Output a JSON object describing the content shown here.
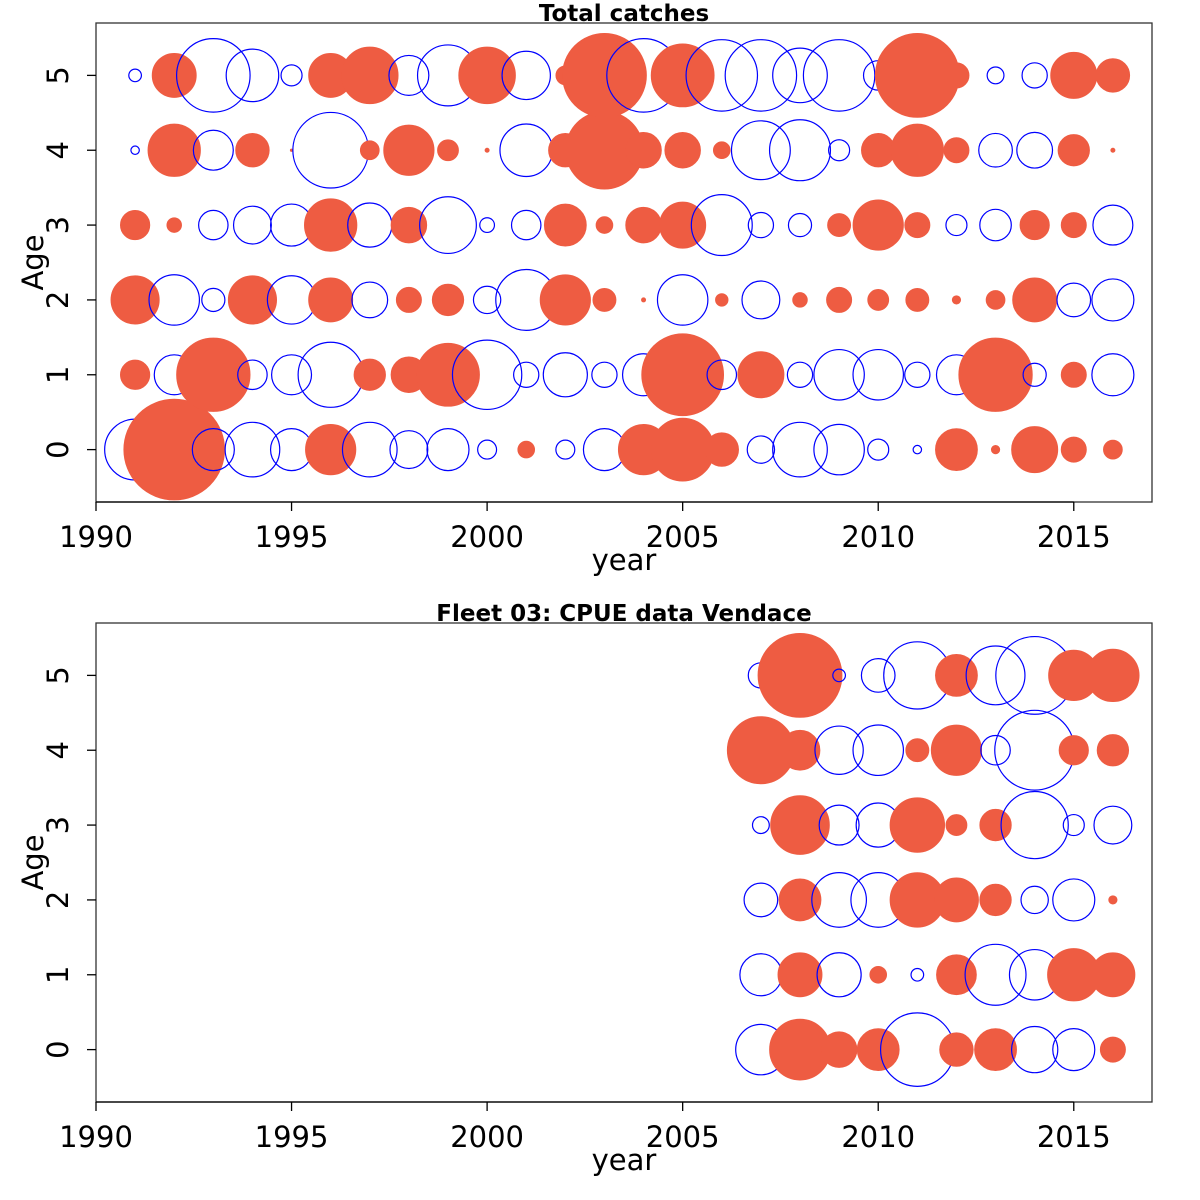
{
  "colors": {
    "positive": "#EE5C42",
    "negative": "#0000FF",
    "axis": "#000000",
    "frame": "#333333"
  },
  "chart_data": [
    {
      "type": "scatter",
      "subtype": "bubble",
      "title": "Total catches",
      "xlabel": "year",
      "ylabel": "Age",
      "xlim": [
        1990,
        2017
      ],
      "ylim": [
        -0.7,
        5.7
      ],
      "xticks": [
        1990,
        1995,
        2000,
        2005,
        2010,
        2015
      ],
      "yticks": [
        0,
        1,
        2,
        3,
        4,
        5
      ],
      "grid": false,
      "legend": "none",
      "encoding": "size = magnitude; filled red = positive, open blue = negative",
      "years": [
        1991,
        1992,
        1993,
        1994,
        1995,
        1996,
        1997,
        1998,
        1999,
        2000,
        2001,
        2002,
        2003,
        2004,
        2005,
        2006,
        2007,
        2008,
        2009,
        2010,
        2011,
        2012,
        2013,
        2014,
        2015,
        2016
      ],
      "ages": [
        0,
        1,
        2,
        3,
        4,
        5
      ],
      "values": [
        [
          -1.45,
          2.4,
          -1.0,
          -1.3,
          -1.0,
          1.2,
          -1.3,
          -0.9,
          -1.0,
          -0.45,
          0.4,
          -0.45,
          -1.0,
          1.2,
          1.5,
          0.8,
          -0.65,
          -1.3,
          -1.2,
          -0.5,
          -0.2,
          1.0,
          0.2,
          1.1,
          0.6,
          0.45
        ],
        [
          0.7,
          -0.95,
          1.75,
          -0.7,
          -0.95,
          -1.55,
          0.75,
          0.85,
          1.5,
          -1.65,
          -0.6,
          -1.05,
          -0.6,
          -1.0,
          1.95,
          -0.7,
          1.1,
          -0.6,
          -1.2,
          -1.2,
          -0.6,
          -0.95,
          1.75,
          -0.55,
          0.6,
          -1.0
        ],
        [
          1.15,
          -1.2,
          -0.55,
          1.15,
          -1.15,
          1.05,
          -0.85,
          0.6,
          0.75,
          -0.65,
          -1.45,
          1.2,
          0.55,
          0.1,
          -1.2,
          0.3,
          -0.9,
          0.35,
          0.6,
          0.5,
          0.55,
          0.2,
          0.45,
          1.05,
          -0.8,
          -1.0
        ],
        [
          0.7,
          0.35,
          -0.7,
          -0.9,
          -1.0,
          1.25,
          -1.05,
          0.85,
          -1.35,
          -0.35,
          -0.7,
          1.0,
          0.4,
          0.85,
          1.1,
          -1.45,
          -0.6,
          -0.55,
          0.55,
          1.2,
          0.6,
          -0.5,
          -0.75,
          0.7,
          0.6,
          -0.95
        ],
        [
          -0.2,
          1.25,
          -0.95,
          0.8,
          0.06,
          -1.8,
          0.45,
          1.2,
          0.5,
          0.1,
          -1.25,
          0.8,
          1.85,
          0.85,
          0.85,
          0.4,
          -1.4,
          -1.45,
          -0.5,
          0.8,
          1.25,
          0.6,
          -0.8,
          -0.85,
          0.75,
          0.1
        ],
        [
          -0.3,
          1.05,
          -1.75,
          -1.25,
          -0.5,
          1.05,
          1.35,
          -0.95,
          -1.45,
          1.35,
          -1.15,
          0.45,
          2.0,
          -1.75,
          1.5,
          -1.7,
          -1.7,
          -1.3,
          -1.7,
          -0.7,
          2.0,
          0.6,
          -0.4,
          -0.6,
          1.1,
          0.8
        ]
      ]
    },
    {
      "type": "scatter",
      "subtype": "bubble",
      "title": "Fleet 03:  CPUE data Vendace",
      "xlabel": "year",
      "ylabel": "Age",
      "xlim": [
        1990,
        2017
      ],
      "ylim": [
        -0.7,
        5.7
      ],
      "xticks": [
        1990,
        1995,
        2000,
        2005,
        2010,
        2015
      ],
      "yticks": [
        0,
        1,
        2,
        3,
        4,
        5
      ],
      "grid": false,
      "legend": "none",
      "encoding": "size = magnitude; filled red = positive, open blue = negative",
      "years": [
        2007,
        2008,
        2009,
        2010,
        2011,
        2012,
        2013,
        2014,
        2015,
        2016
      ],
      "ages": [
        0,
        1,
        2,
        3,
        4,
        5
      ],
      "values": [
        [
          -1.2,
          1.45,
          0.85,
          1.0,
          -1.75,
          0.8,
          1.0,
          -1.1,
          -1.0,
          0.6
        ],
        [
          -1.0,
          1.05,
          -1.05,
          0.4,
          -0.3,
          0.95,
          -1.45,
          -1.2,
          1.25,
          1.05
        ],
        [
          -0.8,
          1.0,
          -1.3,
          -1.3,
          1.3,
          1.05,
          0.75,
          -0.65,
          -1.0,
          0.2
        ],
        [
          -0.4,
          1.4,
          -0.95,
          -1.05,
          1.3,
          0.5,
          0.75,
          -1.6,
          -0.5,
          -0.9
        ],
        [
          1.6,
          0.95,
          -1.15,
          -1.2,
          0.55,
          1.2,
          -0.7,
          -1.9,
          0.7,
          0.75
        ],
        [
          -0.6,
          2.0,
          -0.3,
          -0.8,
          -1.6,
          1.0,
          -1.4,
          -1.85,
          1.2,
          1.25
        ]
      ]
    }
  ]
}
